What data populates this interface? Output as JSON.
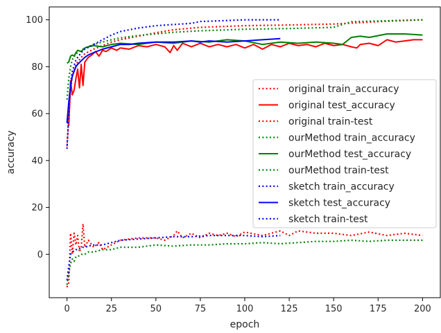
{
  "chart_data": {
    "type": "line",
    "title": "",
    "xlabel": "epoch",
    "ylabel": "accuracy",
    "xlim": [
      -10,
      210
    ],
    "ylim": [
      -18.5,
      105.5
    ],
    "xticks": [
      0,
      25,
      50,
      75,
      100,
      125,
      150,
      175,
      200
    ],
    "yticks": [
      0,
      20,
      40,
      60,
      80,
      100
    ],
    "grid": false,
    "legend_position": "center-right",
    "series": [
      {
        "name": "original train_accuracy",
        "color": "#ff0000",
        "style": "dotted",
        "x": [
          0,
          1,
          2,
          3,
          5,
          8,
          10,
          15,
          20,
          25,
          30,
          40,
          50,
          60,
          75,
          100,
          125,
          150,
          175,
          200
        ],
        "y": [
          46,
          58,
          70,
          76,
          81,
          84,
          85.5,
          87.5,
          89,
          90.5,
          91.5,
          93,
          94.5,
          95.8,
          96.8,
          97.5,
          97.8,
          98.2,
          99.2,
          100
        ]
      },
      {
        "name": "original test_accuracy",
        "color": "#ff0000",
        "style": "solid",
        "x": [
          0,
          1,
          2,
          3,
          4,
          5,
          6,
          7,
          8,
          9,
          10,
          12,
          14,
          16,
          18,
          20,
          22,
          25,
          28,
          30,
          35,
          40,
          45,
          50,
          55,
          58,
          60,
          62,
          65,
          70,
          75,
          80,
          85,
          90,
          95,
          100,
          105,
          110,
          115,
          120,
          125,
          130,
          135,
          140,
          145,
          150,
          155,
          160,
          163,
          165,
          170,
          175,
          180,
          185,
          190,
          195,
          200
        ],
        "y": [
          57,
          55,
          74,
          68,
          70,
          75,
          79,
          71,
          81,
          72,
          82,
          84,
          85,
          86.5,
          84.5,
          87,
          86.5,
          88,
          87,
          88,
          87.5,
          89,
          88.5,
          89.5,
          88.5,
          86,
          89,
          87,
          90,
          88.5,
          90,
          88.5,
          89.5,
          88.5,
          89.5,
          88,
          89.5,
          87.5,
          89.5,
          88.5,
          90,
          89,
          89.5,
          88.5,
          90,
          89,
          89.5,
          88.5,
          88,
          89.5,
          90,
          89,
          91.5,
          90.5,
          91,
          91.5,
          91.5
        ]
      },
      {
        "name": "original train-test",
        "color": "#ff0000",
        "style": "dotted",
        "x": [
          0,
          1,
          2,
          3,
          4,
          5,
          6,
          7,
          8,
          9,
          10,
          12,
          15,
          18,
          20,
          25,
          30,
          40,
          50,
          55,
          60,
          62,
          65,
          70,
          75,
          80,
          85,
          90,
          95,
          100,
          110,
          120,
          125,
          130,
          140,
          150,
          160,
          170,
          180,
          190,
          200
        ],
        "y": [
          -14,
          -12,
          9,
          0,
          9,
          4,
          8,
          1,
          3,
          13,
          3,
          6,
          3,
          5,
          2,
          4,
          6,
          7,
          7,
          6,
          8,
          10,
          7,
          9,
          7,
          9,
          8,
          9,
          7.5,
          9.5,
          8,
          10,
          8,
          10,
          9,
          9,
          8,
          9.5,
          8,
          9,
          8
        ]
      },
      {
        "name": "ourMethod train_accuracy",
        "color": "#008000",
        "style": "dotted",
        "x": [
          0,
          1,
          2,
          3,
          5,
          8,
          10,
          15,
          20,
          25,
          30,
          40,
          50,
          60,
          75,
          100,
          125,
          150,
          160,
          175,
          200
        ],
        "y": [
          66,
          75,
          80,
          83,
          85.5,
          87,
          88,
          89.5,
          90.5,
          91.5,
          92.3,
          93.3,
          94,
          94.7,
          95.3,
          96,
          96.3,
          96.8,
          99.2,
          99.5,
          100
        ]
      },
      {
        "name": "ourMethod test_accuracy",
        "color": "#008000",
        "style": "solid",
        "x": [
          0,
          1,
          2,
          3,
          4,
          5,
          6,
          8,
          10,
          12,
          15,
          20,
          25,
          30,
          40,
          50,
          60,
          70,
          80,
          90,
          100,
          110,
          120,
          130,
          140,
          150,
          155,
          160,
          165,
          170,
          180,
          190,
          200
        ],
        "y": [
          81.5,
          82,
          84.5,
          85,
          84.5,
          86,
          87,
          86.5,
          88,
          88.5,
          89,
          88.5,
          89.5,
          90,
          89.5,
          90.5,
          90,
          91,
          90.5,
          91.5,
          91,
          89.5,
          90.5,
          90,
          90.5,
          90,
          89.5,
          92.5,
          93,
          92.5,
          94,
          94,
          93.5
        ]
      },
      {
        "name": "ourMethod train-test",
        "color": "#008000",
        "style": "dotted",
        "x": [
          0,
          1,
          2,
          3,
          4,
          5,
          6,
          8,
          10,
          12,
          15,
          20,
          25,
          30,
          40,
          50,
          60,
          70,
          80,
          90,
          100,
          110,
          120,
          130,
          140,
          150,
          160,
          170,
          180,
          190,
          200
        ],
        "y": [
          -13,
          -8,
          -4,
          -2,
          -3,
          -1,
          -1,
          0,
          0,
          1,
          1,
          2,
          2,
          3,
          3,
          4,
          3.5,
          4,
          4,
          4.5,
          4.5,
          5,
          4.5,
          5,
          5.5,
          5.5,
          6,
          5.5,
          6,
          6,
          6
        ]
      },
      {
        "name": "sketch train_accuracy",
        "color": "#0000ff",
        "style": "dotted",
        "x": [
          0,
          1,
          2,
          3,
          5,
          8,
          10,
          15,
          20,
          25,
          30,
          40,
          50,
          60,
          70,
          75,
          80,
          100,
          120
        ],
        "y": [
          45,
          60,
          73,
          78,
          83,
          86,
          87.5,
          89.5,
          91.5,
          93.5,
          95,
          96.5,
          97.5,
          98,
          98.5,
          99.3,
          99.4,
          100,
          100
        ]
      },
      {
        "name": "sketch test_accuracy",
        "color": "#0000ff",
        "style": "solid",
        "x": [
          0,
          1,
          2,
          3,
          4,
          5,
          6,
          8,
          10,
          12,
          15,
          20,
          25,
          30,
          35,
          40,
          50,
          60,
          70,
          75,
          80,
          90,
          100,
          110,
          120
        ],
        "y": [
          56,
          65,
          72,
          76,
          78,
          80,
          81,
          82.5,
          84,
          85,
          86,
          87.5,
          88.5,
          89.5,
          89.5,
          90,
          90.5,
          90.5,
          91,
          90.5,
          91,
          90.5,
          91,
          91.5,
          92
        ]
      },
      {
        "name": "sketch train-test",
        "color": "#0000ff",
        "style": "dotted",
        "x": [
          0,
          1,
          2,
          3,
          4,
          5,
          6,
          8,
          10,
          12,
          15,
          20,
          25,
          30,
          40,
          50,
          60,
          70,
          80,
          90,
          100,
          110,
          120
        ],
        "y": [
          -11,
          -5,
          0,
          1,
          1.5,
          2,
          2,
          3,
          3,
          3.5,
          4,
          4,
          5,
          6,
          6.5,
          7,
          7.5,
          7.5,
          8,
          8,
          8,
          7.5,
          8
        ]
      }
    ]
  }
}
